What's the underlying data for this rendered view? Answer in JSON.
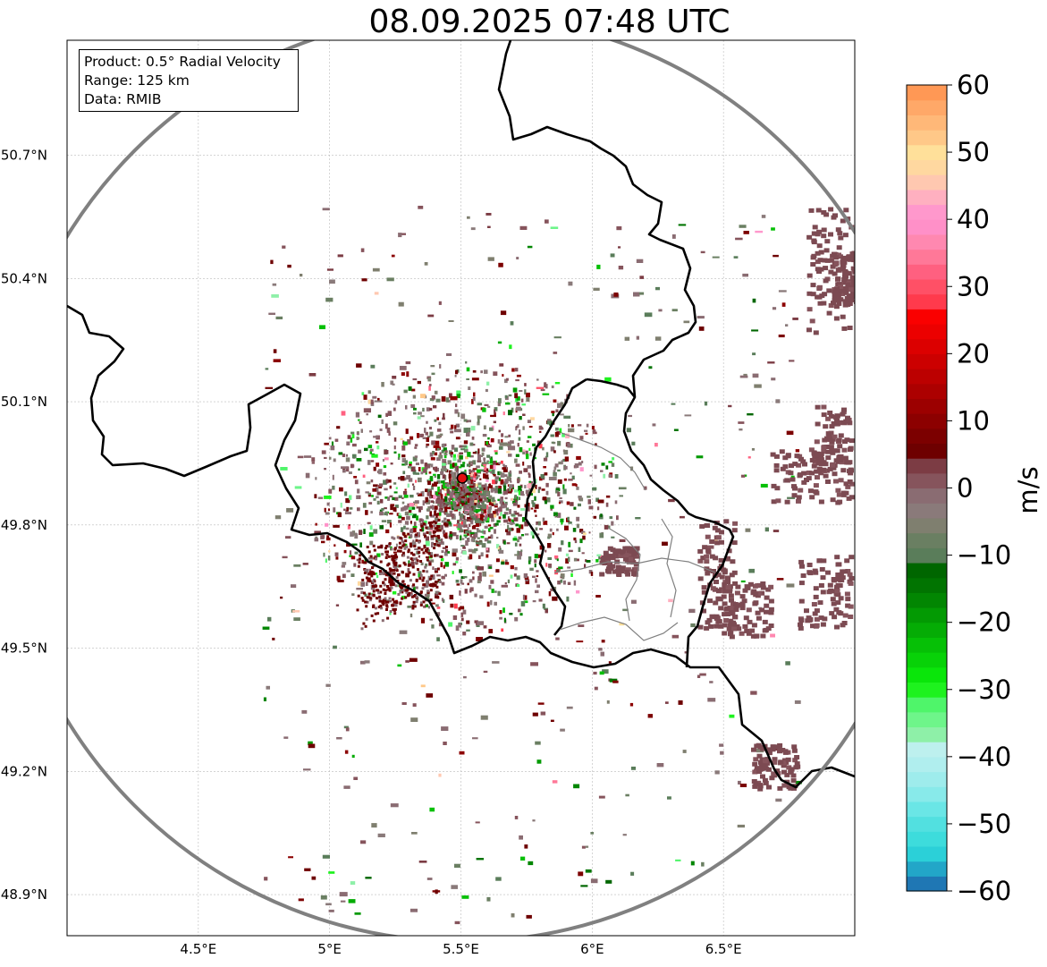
{
  "title": "08.09.2025 07:48 UTC",
  "info": {
    "product": "Product: 0.5° Radial Velocity",
    "range": "Range: 125 km",
    "data": "Data: RMIB"
  },
  "map": {
    "lon_range": [
      4.0,
      7.0
    ],
    "lat_range": [
      48.8,
      50.98
    ],
    "x_ticks": [
      {
        "value": 4.5,
        "label": "4.5°E"
      },
      {
        "value": 5.0,
        "label": "5°E"
      },
      {
        "value": 5.5,
        "label": "5.5°E"
      },
      {
        "value": 6.0,
        "label": "6°E"
      },
      {
        "value": 6.5,
        "label": "6.5°E"
      }
    ],
    "y_ticks": [
      {
        "value": 50.7,
        "label": "50.7°N"
      },
      {
        "value": 50.4,
        "label": "50.4°N"
      },
      {
        "value": 50.1,
        "label": "50.1°N"
      },
      {
        "value": 49.8,
        "label": "49.8°N"
      },
      {
        "value": 49.5,
        "label": "49.5°N"
      },
      {
        "value": 49.2,
        "label": "49.2°N"
      },
      {
        "value": 48.9,
        "label": "48.9°N"
      }
    ],
    "radar_site": {
      "lon": 5.505,
      "lat": 49.914
    },
    "range_ring_color": "#808080",
    "border_color": "#000000",
    "sub_border_color": "#808080"
  },
  "colorbar": {
    "min": -60,
    "max": 60,
    "ticks": [
      60,
      50,
      40,
      30,
      20,
      10,
      0,
      -10,
      -20,
      -30,
      -40,
      -50,
      -60
    ],
    "tick_labels": [
      "60",
      "50",
      "40",
      "30",
      "20",
      "10",
      "0",
      "−10",
      "−20",
      "−30",
      "−40",
      "−50",
      "−60"
    ],
    "unit": "m/s",
    "colors": [
      "#1f77b4",
      "#22a6c8",
      "#2bd0d8",
      "#3ddcdc",
      "#52e0e0",
      "#6ae6e6",
      "#88eaea",
      "#9eecec",
      "#b0eeee",
      "#bdf0ee",
      "#8ef0a8",
      "#6ef58a",
      "#4ff56a",
      "#1ef21e",
      "#0ae60a",
      "#08d208",
      "#06c006",
      "#05ac05",
      "#039a03",
      "#028602",
      "#017401",
      "#006600",
      "#5a7d5a",
      "#6a7f62",
      "#7f7f6f",
      "#8a7a7a",
      "#8a6c72",
      "#86545c",
      "#7c3c44",
      "#6e0000",
      "#7c0000",
      "#8c0000",
      "#9c0000",
      "#ac0000",
      "#bc0000",
      "#cc0000",
      "#dc0000",
      "#ec0000",
      "#fa0000",
      "#ff3a4c",
      "#ff5066",
      "#ff6080",
      "#ff7898",
      "#ff88b0",
      "#ff90c8",
      "#ff98cc",
      "#ffb0c0",
      "#ffc8b0",
      "#ffd8a0",
      "#ffe09a",
      "#ffc888",
      "#ffb878",
      "#ffa868",
      "#ff9855"
    ]
  }
}
